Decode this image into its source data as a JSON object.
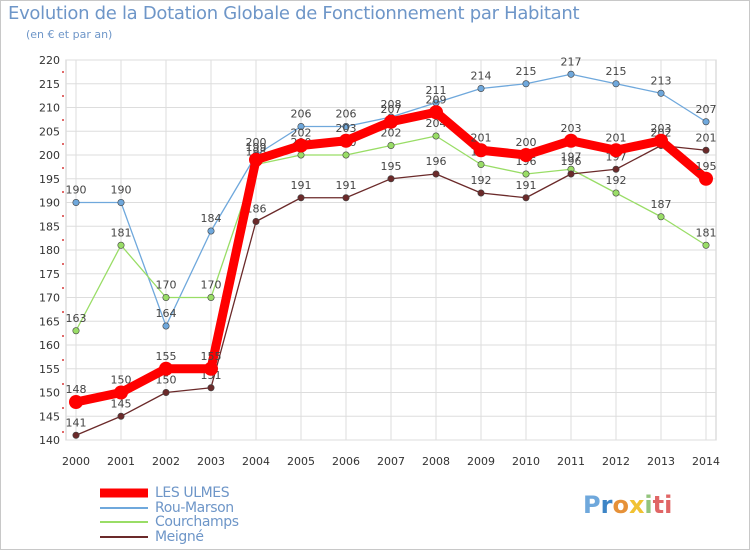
{
  "header": {
    "title": "Evolution de la Dotation Globale de Fonctionnement par Habitant",
    "subtitle": "(en € et par an)"
  },
  "brand": {
    "logo_text": "Proxiti",
    "logo_letters": [
      "P",
      "r",
      "o",
      "x",
      "i",
      "ti"
    ]
  },
  "chart_data": {
    "type": "line",
    "title": "Evolution de la Dotation Globale de Fonctionnement par Habitant",
    "subtitle": "(en € et par an)",
    "xlabel": "",
    "ylabel": "",
    "ylim": [
      140,
      220
    ],
    "y_ticks": [
      140,
      145,
      150,
      155,
      160,
      165,
      170,
      175,
      180,
      185,
      190,
      195,
      200,
      205,
      210,
      215,
      220
    ],
    "categories": [
      "2000",
      "2001",
      "2002",
      "2003",
      "2004",
      "2005",
      "2006",
      "2007",
      "2008",
      "2009",
      "2010",
      "2011",
      "2012",
      "2013",
      "2014"
    ],
    "grid": true,
    "legend_position": "bottom-left",
    "series": [
      {
        "name": "LES ULMES",
        "color": "#ff0000",
        "emphasis": "thick",
        "values": [
          148,
          150,
          155,
          155,
          199,
          202,
          203,
          207,
          209,
          201,
          200,
          203,
          201,
          203,
          195
        ]
      },
      {
        "name": "Rou-Marson",
        "color": "#6fa8dc",
        "emphasis": "thin",
        "values": [
          190,
          190,
          164,
          184,
          200,
          206,
          206,
          208,
          211,
          214,
          215,
          217,
          215,
          213,
          207
        ]
      },
      {
        "name": "Courchamps",
        "color": "#99dd66",
        "emphasis": "thin",
        "values": [
          163,
          181,
          170,
          170,
          198,
          200,
          200,
          202,
          204,
          198,
          196,
          197,
          192,
          187,
          181
        ]
      },
      {
        "name": "Meigné",
        "color": "#6b2a2a",
        "emphasis": "thin",
        "values": [
          141,
          145,
          150,
          151,
          186,
          191,
          191,
          195,
          196,
          192,
          191,
          196,
          197,
          202,
          201
        ]
      }
    ]
  }
}
